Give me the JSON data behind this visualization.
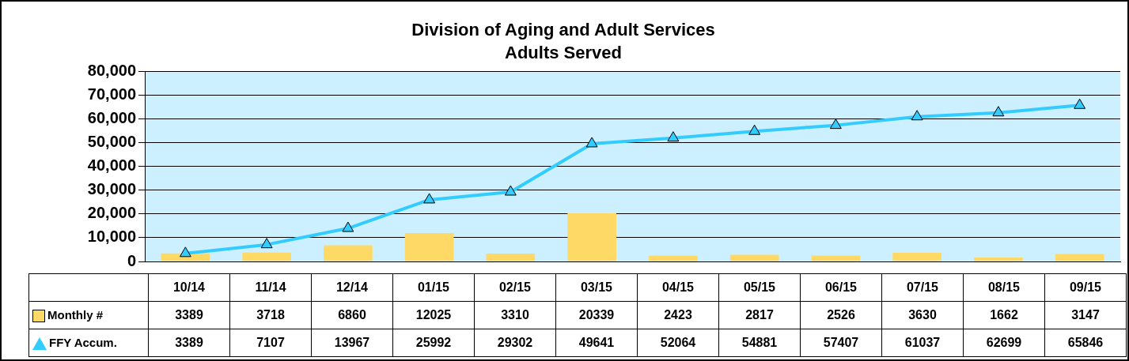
{
  "chart_data": {
    "type": "bar",
    "title": "Division of Aging and Adult Services",
    "subtitle": "Adults Served",
    "categories": [
      "10/14",
      "11/14",
      "12/14",
      "01/15",
      "02/15",
      "03/15",
      "04/15",
      "05/15",
      "06/15",
      "07/15",
      "08/15",
      "09/15"
    ],
    "series": [
      {
        "name": "Monthly #",
        "type": "bar",
        "color": "#ffd966",
        "values": [
          3389,
          3718,
          6860,
          12025,
          3310,
          20339,
          2423,
          2817,
          2526,
          3630,
          1662,
          3147
        ]
      },
      {
        "name": "FFY Accum.",
        "type": "line",
        "color": "#33ccff",
        "values": [
          3389,
          7107,
          13967,
          25992,
          29302,
          49641,
          52064,
          54881,
          57407,
          61037,
          62699,
          65846
        ]
      }
    ],
    "ylim": [
      0,
      80000
    ],
    "yticks": [
      0,
      {
        "value": 10000,
        "label": "10,000"
      },
      {
        "value": 20000,
        "label": "20,000"
      },
      {
        "value": 30000,
        "label": "30,000"
      },
      {
        "value": 40000,
        "label": "40,000"
      },
      {
        "value": 50000,
        "label": "50,000"
      },
      {
        "value": 60000,
        "label": "60,000"
      },
      {
        "value": 70000,
        "label": "70,000"
      },
      {
        "value": 80000,
        "label": "80,000"
      }
    ],
    "grid": "y",
    "legend": "bottom",
    "marker": "triangle",
    "line_style": "solid",
    "data_labels": true
  }
}
